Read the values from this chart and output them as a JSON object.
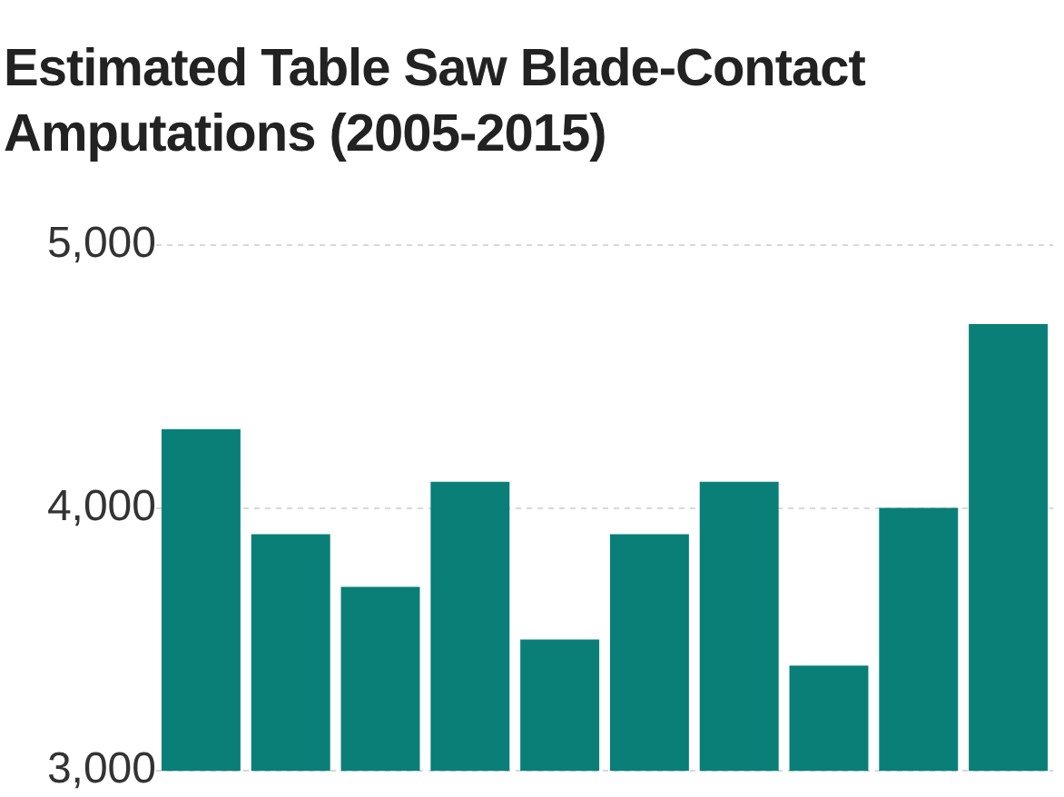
{
  "chart_data": {
    "type": "bar",
    "title": "Estimated Table Saw Blade-Contact Amputations (2005-2015)",
    "categories": [
      null,
      null,
      null,
      null,
      null,
      null,
      null,
      null,
      null,
      null
    ],
    "values": [
      4300,
      3900,
      3700,
      4100,
      3500,
      3900,
      4100,
      3400,
      4000,
      4700
    ],
    "color": "#0a7f78",
    "ylim": [
      3000,
      5000
    ],
    "yticks": [
      {
        "value": 3000,
        "label": "3,000"
      },
      {
        "value": 4000,
        "label": "4,000"
      },
      {
        "value": 5000,
        "label": "5,000"
      }
    ],
    "grid": "y",
    "tick_labels": "y"
  }
}
